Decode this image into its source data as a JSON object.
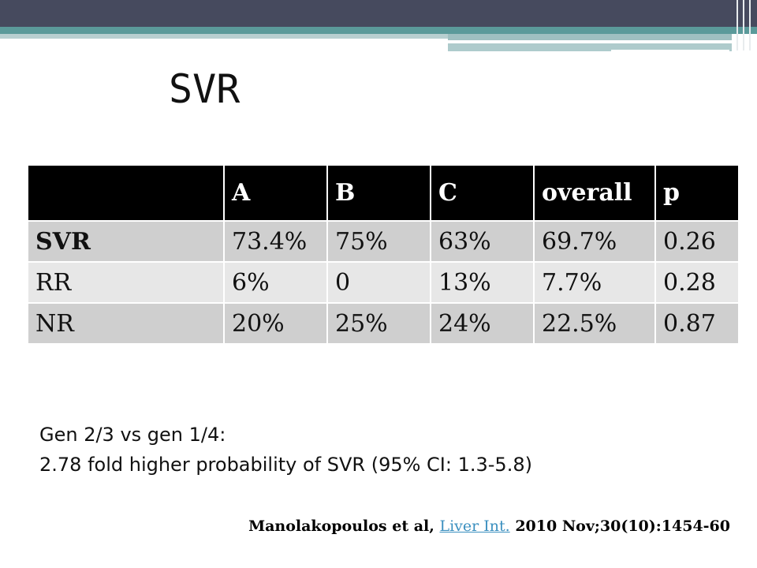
{
  "slide": {
    "title": "SVR",
    "table": {
      "headers": [
        "",
        "A",
        "B",
        "C",
        "overall",
        "p"
      ],
      "rows": [
        {
          "label": "SVR",
          "values": [
            "73.4%",
            "75%",
            "63%",
            "69.7%",
            "0.26"
          ]
        },
        {
          "label": "RR",
          "values": [
            "6%",
            "0",
            "13%",
            "7.7%",
            "0.28"
          ]
        },
        {
          "label": "NR",
          "values": [
            "20%",
            "25%",
            "24%",
            "22.5%",
            "0.87"
          ]
        }
      ]
    },
    "note_line1": "Gen 2/3 vs gen 1/4:",
    "note_line2": "2.78 fold higher probability of SVR (95% CI: 1.3-5.8)",
    "citation": {
      "prefix": "Manolakopoulos et al, ",
      "link": "Liver Int.",
      "suffix": " 2010 Nov;30(10):1454-60"
    }
  },
  "colors": {
    "header_bar": "#464a5e",
    "accent_teal": "#5b9a9a",
    "table_header": "#000000",
    "table_row": "#d9d9d9",
    "link": "#3a8fbf"
  }
}
